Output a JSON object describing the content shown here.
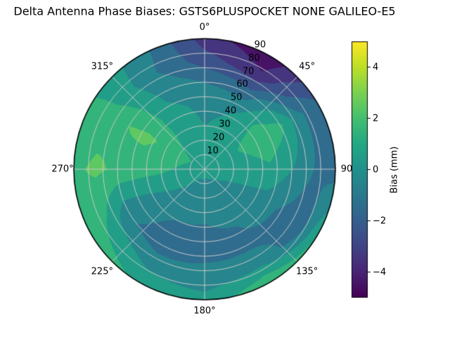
{
  "title": "Delta Antenna Phase Biases: GSTS6PLUSPOCKET NONE GALILEO-E5",
  "chart_data": {
    "type": "heatmap",
    "projection": "polar",
    "title": "Delta Antenna Phase Biases: GSTS6PLUSPOCKET NONE GALILEO-E5",
    "theta_tick_labels": [
      "0°",
      "45°",
      "90",
      "135°",
      "180°",
      "225°",
      "270°",
      "315°"
    ],
    "theta_tick_angles_deg": [
      0,
      45,
      90,
      135,
      180,
      225,
      270,
      315
    ],
    "radial_tick_labels": [
      "10",
      "20",
      "30",
      "40",
      "50",
      "60",
      "70",
      "80",
      "90"
    ],
    "radial_tick_values": [
      10,
      20,
      30,
      40,
      50,
      60,
      70,
      80,
      90
    ],
    "radial_max": 90,
    "azimuth_deg": [
      0,
      30,
      60,
      90,
      120,
      150,
      180,
      210,
      240,
      270,
      300,
      330,
      360
    ],
    "zenith_deg": [
      0,
      15,
      30,
      45,
      60,
      75,
      90
    ],
    "bias_mm": [
      [
        0.3,
        0.2,
        0.0,
        -0.3,
        -1.0,
        -2.5,
        -3.5
      ],
      [
        0.3,
        0.3,
        0.3,
        0.0,
        -1.5,
        -3.8,
        -4.8
      ],
      [
        0.3,
        0.5,
        1.2,
        1.8,
        1.2,
        -0.8,
        -1.8
      ],
      [
        0.3,
        0.3,
        0.5,
        0.8,
        0.0,
        -1.0,
        -1.5
      ],
      [
        0.3,
        0.0,
        -0.2,
        -0.5,
        -1.2,
        -1.8,
        1.0
      ],
      [
        0.2,
        -0.2,
        -0.5,
        -1.0,
        -1.2,
        -0.3,
        2.0
      ],
      [
        0.2,
        -0.3,
        -0.8,
        -1.2,
        -1.2,
        -0.5,
        0.3
      ],
      [
        0.2,
        -0.2,
        -0.6,
        -1.2,
        -1.5,
        -0.3,
        0.8
      ],
      [
        0.3,
        0.2,
        0.0,
        -0.5,
        -0.8,
        0.8,
        1.8
      ],
      [
        0.5,
        0.8,
        1.2,
        1.5,
        1.8,
        2.2,
        1.8
      ],
      [
        0.5,
        1.2,
        1.8,
        2.2,
        2.0,
        1.5,
        1.2
      ],
      [
        0.4,
        0.5,
        0.6,
        0.3,
        -0.2,
        -0.8,
        -0.5
      ],
      [
        0.3,
        0.2,
        0.0,
        -0.3,
        -1.0,
        -2.5,
        -3.5
      ]
    ],
    "contour_level_step_mm": 1,
    "colorbar": {
      "label": "Bias (mm)",
      "tick_labels": [
        "4",
        "2",
        "0",
        "−2",
        "−4"
      ],
      "tick_values": [
        4,
        2,
        0,
        -2,
        -4
      ],
      "vmin": -5,
      "vmax": 5,
      "colormap": "viridis"
    }
  },
  "colors": {
    "viridis_stops": [
      [
        0.0,
        "#440154"
      ],
      [
        0.1,
        "#482475"
      ],
      [
        0.2,
        "#414487"
      ],
      [
        0.3,
        "#355f8d"
      ],
      [
        0.4,
        "#2a788e"
      ],
      [
        0.5,
        "#21918c"
      ],
      [
        0.6,
        "#22a884"
      ],
      [
        0.7,
        "#44bf70"
      ],
      [
        0.8,
        "#7ad151"
      ],
      [
        0.9,
        "#bddf26"
      ],
      [
        1.0,
        "#fde725"
      ]
    ],
    "grid_line": "#c9c9c9",
    "outline": "#000000",
    "background": "#ffffff",
    "text": "#000000"
  }
}
